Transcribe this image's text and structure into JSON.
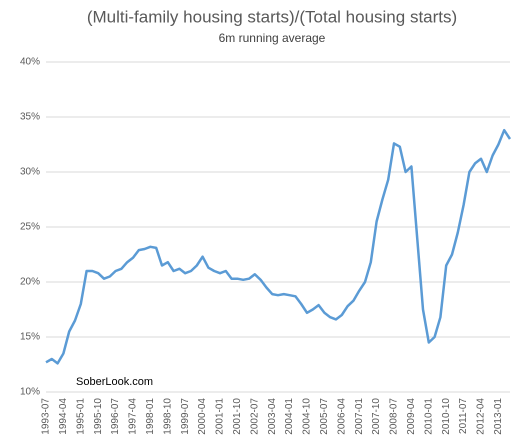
{
  "chart_data": {
    "type": "line",
    "title": "(Multi-family housing starts)/(Total housing starts)",
    "subtitle": "6m running average",
    "annotation": "SoberLook.com",
    "categories": [
      "1993-07",
      null,
      null,
      "1994-04",
      null,
      null,
      "1995-01",
      null,
      null,
      "1995-10",
      null,
      null,
      "1996-07",
      null,
      null,
      "1997-04",
      null,
      null,
      "1998-01",
      null,
      null,
      "1998-10",
      null,
      null,
      "1999-07",
      null,
      null,
      "2000-04",
      null,
      null,
      "2001-01",
      null,
      null,
      "2001-10",
      null,
      null,
      "2002-07",
      null,
      null,
      "2003-04",
      null,
      null,
      "2004-01",
      null,
      null,
      "2004-10",
      null,
      null,
      "2005-07",
      null,
      null,
      "2006-04",
      null,
      null,
      "2007-01",
      null,
      null,
      "2007-10",
      null,
      null,
      "2008-07",
      null,
      null,
      "2009-04",
      null,
      null,
      "2010-01",
      null,
      null,
      "2010-10",
      null,
      null,
      "2011-07",
      null,
      null,
      "2012-04",
      null,
      null,
      "2013-01",
      null,
      null
    ],
    "values": [
      12.7,
      13.0,
      12.6,
      13.5,
      15.5,
      16.5,
      18.0,
      21.0,
      21.0,
      20.8,
      20.3,
      20.5,
      21.0,
      21.2,
      21.8,
      22.2,
      22.9,
      23.0,
      23.2,
      23.1,
      21.5,
      21.8,
      21.0,
      21.2,
      20.8,
      21.0,
      21.5,
      22.3,
      21.3,
      21.0,
      20.8,
      21.0,
      20.3,
      20.3,
      20.2,
      20.3,
      20.7,
      20.2,
      19.5,
      18.9,
      18.8,
      18.9,
      18.8,
      18.7,
      18.0,
      17.2,
      17.5,
      17.9,
      17.2,
      16.8,
      16.6,
      17.0,
      17.8,
      18.3,
      19.2,
      20.0,
      21.8,
      25.5,
      27.5,
      29.3,
      32.6,
      32.3,
      30.0,
      30.5,
      24.0,
      17.5,
      14.5,
      15.0,
      16.8,
      21.5,
      22.5,
      24.5,
      27.0,
      30.0,
      30.8,
      31.2,
      30.0,
      31.5,
      32.5,
      33.8,
      33.0
    ],
    "color": "#5b9bd5",
    "ylim": [
      10,
      40
    ],
    "yticks": [
      {
        "value": 10,
        "label": "10%"
      },
      {
        "value": 15,
        "label": "15%"
      },
      {
        "value": 20,
        "label": "20%"
      },
      {
        "value": 25,
        "label": "25%"
      },
      {
        "value": 30,
        "label": "30%"
      },
      {
        "value": 35,
        "label": "35%"
      },
      {
        "value": 40,
        "label": "40%"
      }
    ],
    "grid": true
  }
}
